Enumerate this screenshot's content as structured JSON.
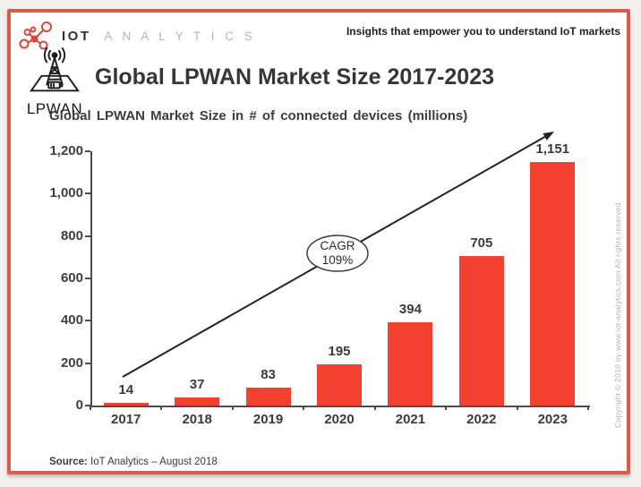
{
  "header": {
    "brand_iot": "IOT",
    "brand_analytics": "A N A L Y T I C S",
    "tagline": "Insights that empower you to understand IoT markets"
  },
  "title_block": {
    "icon_caption": "LPWAN",
    "title": "Global LPWAN Market Size 2017-2023"
  },
  "chart_data": {
    "type": "bar",
    "title": "Global LPWAN Market Size in # of connected devices (millions)",
    "categories": [
      "2017",
      "2018",
      "2019",
      "2020",
      "2021",
      "2022",
      "2023"
    ],
    "values": [
      14,
      37,
      83,
      195,
      394,
      705,
      1151
    ],
    "value_labels": [
      "14",
      "37",
      "83",
      "195",
      "394",
      "705",
      "1,151"
    ],
    "ylim": [
      0,
      1200
    ],
    "ytick_interval": 200,
    "ytick_labels": [
      "0",
      "200",
      "400",
      "600",
      "800",
      "1,000",
      "1,200"
    ],
    "bar_color": "#f4402f",
    "grid": false,
    "legend_position": "none",
    "annotation": {
      "line1": "CAGR",
      "line2": "109%"
    }
  },
  "footer": {
    "source_label": "Source:",
    "source_text": " IoT Analytics – August 2018"
  },
  "copyright": "Copyright © 2018 by www.iot-analytics.com All rights reserved",
  "colors": {
    "frame": "#d85c4e",
    "bar": "#f4402f",
    "logo_red": "#d9473b",
    "text_dark": "#35353c"
  }
}
